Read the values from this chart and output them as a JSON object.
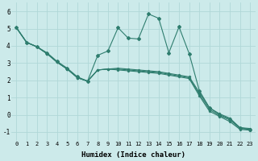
{
  "xlabel": "Humidex (Indice chaleur)",
  "background_color": "#cceaea",
  "line_color": "#2e7d6e",
  "grid_color": "#b0d8d8",
  "xlim": [
    -0.5,
    23.5
  ],
  "ylim": [
    -1.5,
    6.5
  ],
  "xticks": [
    0,
    1,
    2,
    3,
    4,
    5,
    6,
    7,
    8,
    9,
    10,
    11,
    12,
    13,
    14,
    15,
    16,
    17,
    18,
    19,
    20,
    21,
    22,
    23
  ],
  "yticks": [
    -1,
    0,
    1,
    2,
    3,
    4,
    5,
    6
  ],
  "main_series_x": [
    0,
    1,
    2,
    3,
    4,
    5,
    6,
    7,
    8,
    9,
    10,
    11,
    12,
    13,
    14,
    15,
    16,
    17,
    18,
    19,
    20,
    21,
    22,
    23
  ],
  "main_series_y": [
    5.05,
    4.2,
    3.95,
    3.6,
    3.1,
    2.7,
    2.2,
    1.95,
    3.45,
    3.7,
    5.05,
    4.45,
    4.4,
    5.85,
    5.6,
    3.6,
    5.1,
    3.55,
    1.4,
    0.4,
    0.0,
    -0.25,
    -0.75,
    -0.85
  ],
  "band_lines": [
    {
      "x": [
        0,
        1,
        2,
        3,
        4,
        5,
        6,
        7,
        8,
        9,
        23
      ],
      "y": [
        5.05,
        4.2,
        3.95,
        3.55,
        3.05,
        2.65,
        2.15,
        1.95,
        2.6,
        2.65,
        -0.8
      ]
    },
    {
      "x": [
        0,
        1,
        2,
        3,
        4,
        5,
        6,
        7,
        8,
        9,
        23
      ],
      "y": [
        5.05,
        4.2,
        3.95,
        3.55,
        3.05,
        2.65,
        2.15,
        1.95,
        2.6,
        2.65,
        -0.85
      ]
    },
    {
      "x": [
        0,
        1,
        2,
        3,
        4,
        5,
        6,
        7,
        8,
        9,
        23
      ],
      "y": [
        5.05,
        4.2,
        3.95,
        3.55,
        3.05,
        2.65,
        2.15,
        1.95,
        2.6,
        2.65,
        -0.9
      ]
    }
  ],
  "top_band_x": [
    0,
    1,
    2,
    3,
    4,
    5,
    6,
    7,
    8,
    9,
    10,
    11,
    12,
    13,
    14,
    15,
    16,
    17,
    18,
    19,
    20,
    21,
    22,
    23
  ],
  "top_band_y": [
    5.05,
    4.2,
    3.95,
    3.55,
    3.05,
    2.65,
    2.15,
    1.95,
    2.6,
    2.65,
    2.7,
    2.65,
    2.6,
    2.55,
    2.5,
    2.4,
    2.3,
    2.2,
    1.3,
    0.4,
    0.05,
    -0.2,
    -0.75,
    -0.8
  ],
  "mid_band_y": [
    5.05,
    4.2,
    3.95,
    3.55,
    3.05,
    2.65,
    2.15,
    1.95,
    2.6,
    2.65,
    2.65,
    2.6,
    2.55,
    2.5,
    2.45,
    2.35,
    2.25,
    2.15,
    1.2,
    0.3,
    -0.05,
    -0.3,
    -0.8,
    -0.85
  ],
  "bot_band_y": [
    5.05,
    4.2,
    3.95,
    3.55,
    3.05,
    2.65,
    2.15,
    1.95,
    2.6,
    2.65,
    2.6,
    2.55,
    2.5,
    2.45,
    2.4,
    2.3,
    2.2,
    2.1,
    1.1,
    0.2,
    -0.1,
    -0.4,
    -0.85,
    -0.9
  ]
}
